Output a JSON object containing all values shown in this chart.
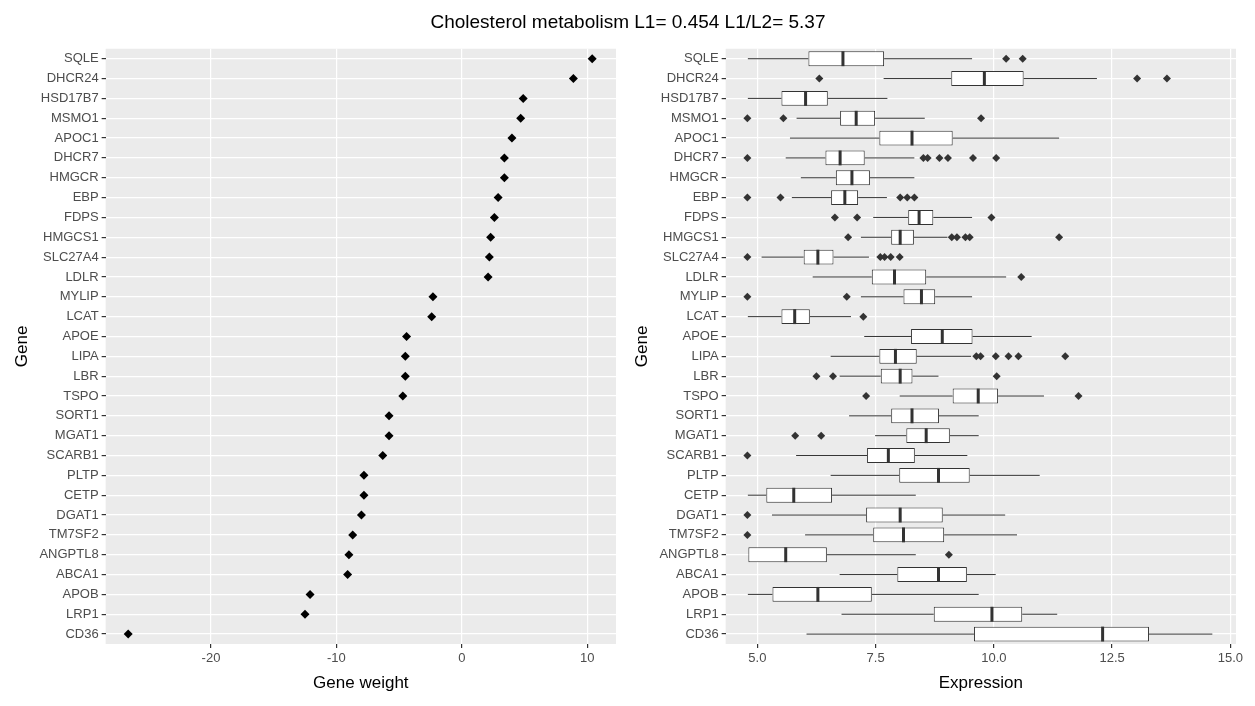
{
  "chart_data": [
    {
      "type": "scatter",
      "title": "Cholesterol metabolism L1= 0.454 L1/L2= 5.37",
      "orientation": "horizontal",
      "xlabel": "Gene weight",
      "ylabel": "Gene",
      "categories": [
        "SQLE",
        "DHCR24",
        "HSD17B7",
        "MSMO1",
        "APOC1",
        "DHCR7",
        "HMGCR",
        "EBP",
        "FDPS",
        "HMGCS1",
        "SLC27A4",
        "LDLR",
        "MYLIP",
        "LCAT",
        "APOE",
        "LIPA",
        "LBR",
        "TSPO",
        "SORT1",
        "MGAT1",
        "SCARB1",
        "PLTP",
        "CETP",
        "DGAT1",
        "TM7SF2",
        "ANGPTL8",
        "ABCA1",
        "APOB",
        "LRP1",
        "CD36"
      ],
      "values": [
        10.4,
        8.9,
        4.9,
        4.7,
        4.0,
        3.4,
        3.4,
        2.9,
        2.6,
        2.3,
        2.2,
        2.1,
        -2.3,
        -2.4,
        -4.4,
        -4.5,
        -4.5,
        -4.7,
        -5.8,
        -5.8,
        -6.3,
        -7.8,
        -7.8,
        -8.0,
        -8.7,
        -9.0,
        -9.1,
        -12.1,
        -12.5,
        -26.6
      ],
      "color": "#000000",
      "marker": "diamond",
      "xlim": [
        -28.4,
        12.3
      ],
      "xticks": [
        -20,
        -10,
        0,
        10
      ],
      "grid": true
    },
    {
      "type": "box",
      "orientation": "horizontal",
      "xlabel": "Expression",
      "ylabel": "Gene",
      "color": "#333333",
      "categories": [
        "SQLE",
        "DHCR24",
        "HSD17B7",
        "MSMO1",
        "APOC1",
        "DHCR7",
        "HMGCR",
        "EBP",
        "FDPS",
        "HMGCS1",
        "SLC27A4",
        "LDLR",
        "MYLIP",
        "LCAT",
        "APOE",
        "LIPA",
        "LBR",
        "TSPO",
        "SORT1",
        "MGAT1",
        "SCARB1",
        "PLTP",
        "CETP",
        "DGAT1",
        "TM7SF2",
        "ANGPTL8",
        "ABCA1",
        "APOB",
        "LRP1",
        "CD36"
      ],
      "boxes": [
        {
          "low": 4.8,
          "q1": 6.08,
          "median": 6.81,
          "q3": 7.68,
          "high": 9.54,
          "outliers": [
            10.26,
            10.61
          ]
        },
        {
          "low": 7.67,
          "q1": 9.1,
          "median": 9.8,
          "q3": 10.63,
          "high": 12.18,
          "outliers": [
            6.31,
            13.03,
            13.66
          ]
        },
        {
          "low": 4.8,
          "q1": 5.51,
          "median": 6.02,
          "q3": 6.49,
          "high": 7.75
        },
        {
          "low": 5.83,
          "q1": 6.75,
          "median": 7.09,
          "q3": 7.49,
          "high": 8.54,
          "outliers": [
            4.79,
            5.55,
            9.73
          ]
        },
        {
          "low": 5.69,
          "q1": 7.58,
          "median": 8.27,
          "q3": 9.13,
          "high": 11.38
        },
        {
          "low": 5.6,
          "q1": 6.44,
          "median": 6.75,
          "q3": 7.27,
          "high": 8.32,
          "outliers": [
            4.79,
            8.51,
            8.6,
            8.85,
            9.03,
            9.56,
            10.05
          ]
        },
        {
          "low": 5.92,
          "q1": 6.66,
          "median": 7.0,
          "q3": 7.38,
          "high": 8.32
        },
        {
          "low": 5.73,
          "q1": 6.56,
          "median": 6.85,
          "q3": 7.13,
          "high": 7.74,
          "outliers": [
            4.79,
            5.49,
            8.02,
            8.17,
            8.32
          ]
        },
        {
          "low": 7.45,
          "q1": 8.19,
          "median": 8.42,
          "q3": 8.72,
          "high": 9.54,
          "outliers": [
            6.64,
            7.11,
            9.95
          ]
        },
        {
          "low": 7.19,
          "q1": 7.83,
          "median": 8.02,
          "q3": 8.31,
          "high": 9.02,
          "outliers": [
            6.92,
            9.11,
            9.22,
            9.4,
            9.49,
            11.38
          ]
        },
        {
          "low": 5.09,
          "q1": 5.98,
          "median": 6.28,
          "q3": 6.61,
          "high": 7.36,
          "outliers": [
            4.79,
            7.6,
            7.69,
            7.82,
            8.01
          ]
        },
        {
          "low": 6.17,
          "q1": 7.42,
          "median": 7.9,
          "q3": 8.57,
          "high": 10.26,
          "outliers": [
            10.58
          ]
        },
        {
          "low": 7.19,
          "q1": 8.09,
          "median": 8.47,
          "q3": 8.76,
          "high": 9.54,
          "outliers": [
            4.79,
            6.89
          ]
        },
        {
          "low": 4.8,
          "q1": 5.51,
          "median": 5.79,
          "q3": 6.11,
          "high": 6.98,
          "outliers": [
            7.24
          ]
        },
        {
          "low": 7.26,
          "q1": 8.25,
          "median": 8.91,
          "q3": 9.55,
          "high": 10.8
        },
        {
          "low": 6.55,
          "q1": 7.58,
          "median": 7.92,
          "q3": 8.37,
          "high": 9.52,
          "outliers": [
            9.63,
            9.72,
            10.04,
            10.31,
            10.52,
            11.51
          ]
        },
        {
          "low": 6.74,
          "q1": 7.61,
          "median": 8.02,
          "q3": 8.28,
          "high": 8.83,
          "outliers": [
            6.25,
            6.6,
            10.06
          ]
        },
        {
          "low": 8.01,
          "q1": 9.13,
          "median": 9.67,
          "q3": 10.09,
          "high": 11.06,
          "outliers": [
            7.3,
            11.79
          ]
        },
        {
          "low": 6.94,
          "q1": 7.83,
          "median": 8.27,
          "q3": 8.84,
          "high": 9.68
        },
        {
          "low": 7.49,
          "q1": 8.15,
          "median": 8.57,
          "q3": 9.07,
          "high": 9.68,
          "outliers": [
            5.8,
            6.35
          ]
        },
        {
          "low": 5.82,
          "q1": 7.32,
          "median": 7.77,
          "q3": 8.33,
          "high": 9.44,
          "outliers": [
            4.79
          ]
        },
        {
          "low": 6.55,
          "q1": 8.0,
          "median": 8.83,
          "q3": 9.49,
          "high": 10.97
        },
        {
          "low": 4.8,
          "q1": 5.19,
          "median": 5.77,
          "q3": 6.58,
          "high": 8.35
        },
        {
          "low": 5.31,
          "q1": 7.3,
          "median": 8.02,
          "q3": 8.92,
          "high": 10.24,
          "outliers": [
            4.79
          ]
        },
        {
          "low": 6.01,
          "q1": 7.45,
          "median": 8.09,
          "q3": 8.95,
          "high": 10.49,
          "outliers": [
            4.79
          ]
        },
        {
          "low": 4.81,
          "q1": 4.81,
          "median": 5.6,
          "q3": 6.47,
          "high": 8.35,
          "outliers": [
            9.05
          ]
        },
        {
          "low": 6.74,
          "q1": 7.96,
          "median": 8.83,
          "q3": 9.43,
          "high": 10.04
        },
        {
          "low": 4.8,
          "q1": 5.32,
          "median": 6.28,
          "q3": 7.42,
          "high": 9.68
        },
        {
          "low": 6.78,
          "q1": 8.73,
          "median": 9.96,
          "q3": 10.6,
          "high": 11.34
        },
        {
          "low": 6.04,
          "q1": 9.58,
          "median": 12.3,
          "q3": 13.28,
          "high": 14.62
        }
      ],
      "xlim": [
        4.33,
        15.12
      ],
      "xticks": [
        {
          "value": 5,
          "label": "5.0"
        },
        7.5,
        {
          "value": 10,
          "label": "10.0"
        },
        12.5,
        {
          "value": 15,
          "label": "15.0"
        }
      ],
      "grid": true
    }
  ]
}
